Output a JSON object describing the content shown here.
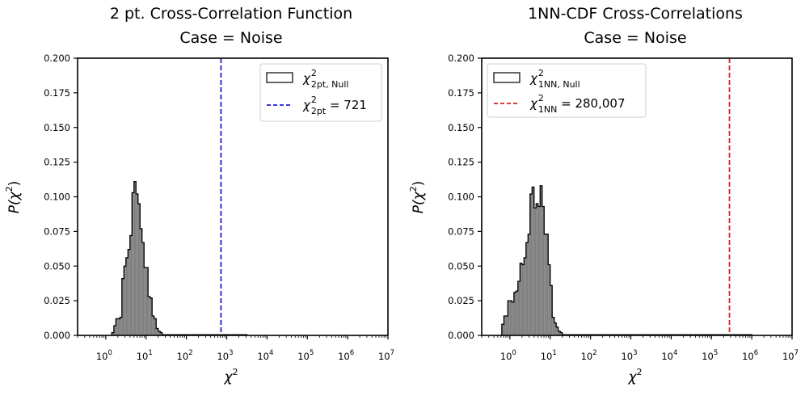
{
  "chart_data": [
    {
      "type": "histogram",
      "title_line1": "2 pt. Cross-Correlation Function",
      "title_line2": "Case = Noise",
      "xlabel": "χ",
      "xlabel_sup": "2",
      "ylabel": "P(χ",
      "ylabel_sup": "2",
      "ylabel_tail": ")",
      "xscale": "log",
      "xlim": [
        0.2,
        10000000
      ],
      "ylim": [
        0,
        0.2
      ],
      "yticks": [
        "0.000",
        "0.025",
        "0.050",
        "0.075",
        "0.100",
        "0.125",
        "0.150",
        "0.175",
        "0.200"
      ],
      "xticks": [
        {
          "base": "10",
          "exp": "0",
          "value": 1
        },
        {
          "base": "10",
          "exp": "1",
          "value": 10
        },
        {
          "base": "10",
          "exp": "2",
          "value": 100
        },
        {
          "base": "10",
          "exp": "3",
          "value": 1000
        },
        {
          "base": "10",
          "exp": "4",
          "value": 10000
        },
        {
          "base": "10",
          "exp": "5",
          "value": 100000
        },
        {
          "base": "10",
          "exp": "6",
          "value": 1000000
        },
        {
          "base": "10",
          "exp": "7",
          "value": 10000000
        }
      ],
      "bin_edges": [
        1.41,
        1.59,
        1.78,
        2.0,
        2.24,
        2.51,
        2.82,
        3.16,
        3.55,
        3.98,
        4.47,
        5.01,
        5.62,
        6.31,
        7.08,
        7.94,
        8.91,
        10.0,
        11.2,
        12.6,
        14.1,
        15.8,
        17.8,
        20.0,
        22.4,
        25.1
      ],
      "counts": [
        0.002,
        0.007,
        0.012,
        0.012,
        0.013,
        0.041,
        0.05,
        0.056,
        0.062,
        0.072,
        0.103,
        0.111,
        0.102,
        0.095,
        0.077,
        0.067,
        0.049,
        0.049,
        0.028,
        0.027,
        0.014,
        0.012,
        0.005,
        0.003,
        0.002
      ],
      "tail_bins": {
        "from": 25.1,
        "to": 3160,
        "value": 0.0005
      },
      "vline": {
        "x": 721,
        "color": "#1f1fd1",
        "style": "dashed"
      },
      "hist_fill": "#808080",
      "legend": {
        "position": "upper right",
        "entries": [
          {
            "kind": "patch",
            "sym": "χ",
            "sup": "2",
            "sub": "2pt, Null",
            "suffix": ""
          },
          {
            "kind": "line",
            "sym": "χ",
            "sup": "2",
            "sub": "2pt",
            "suffix": " = 721"
          }
        ]
      }
    },
    {
      "type": "histogram",
      "title_line1": "1NN-CDF Cross-Correlations",
      "title_line2": "Case = Noise",
      "xlabel": "χ",
      "xlabel_sup": "2",
      "ylabel": "P(χ",
      "ylabel_sup": "2",
      "ylabel_tail": ")",
      "xscale": "log",
      "xlim": [
        0.2,
        10000000
      ],
      "ylim": [
        0,
        0.2
      ],
      "yticks": [
        "0.000",
        "0.025",
        "0.050",
        "0.075",
        "0.100",
        "0.125",
        "0.150",
        "0.175",
        "0.200"
      ],
      "xticks": [
        {
          "base": "10",
          "exp": "0",
          "value": 1
        },
        {
          "base": "10",
          "exp": "1",
          "value": 10
        },
        {
          "base": "10",
          "exp": "2",
          "value": 100
        },
        {
          "base": "10",
          "exp": "3",
          "value": 1000
        },
        {
          "base": "10",
          "exp": "4",
          "value": 10000
        },
        {
          "base": "10",
          "exp": "5",
          "value": 100000
        },
        {
          "base": "10",
          "exp": "6",
          "value": 1000000
        },
        {
          "base": "10",
          "exp": "7",
          "value": 10000000
        }
      ],
      "bin_edges": [
        0.63,
        0.71,
        0.79,
        0.89,
        1.0,
        1.12,
        1.26,
        1.41,
        1.58,
        1.78,
        2.0,
        2.24,
        2.51,
        2.82,
        3.16,
        3.55,
        3.98,
        4.47,
        5.01,
        5.62,
        6.31,
        7.08,
        7.94,
        8.91,
        10.0,
        11.2,
        12.6,
        14.1,
        15.8,
        17.8,
        20.0
      ],
      "counts": [
        0.008,
        0.014,
        0.014,
        0.025,
        0.025,
        0.024,
        0.031,
        0.032,
        0.039,
        0.052,
        0.051,
        0.056,
        0.067,
        0.073,
        0.102,
        0.107,
        0.092,
        0.095,
        0.093,
        0.108,
        0.093,
        0.073,
        0.073,
        0.051,
        0.036,
        0.013,
        0.009,
        0.006,
        0.003,
        0.002
      ],
      "tail_bins": {
        "from": 20.0,
        "to": 1000000,
        "value": 0.0005
      },
      "vline": {
        "x": 280007,
        "color": "#d62020",
        "style": "dashed"
      },
      "hist_fill": "#808080",
      "legend": {
        "position": "upper left",
        "entries": [
          {
            "kind": "patch",
            "sym": "χ",
            "sup": "2",
            "sub": "1NN, Null",
            "suffix": ""
          },
          {
            "kind": "line",
            "sym": "χ",
            "sup": "2",
            "sub": "1NN",
            "suffix": "  = 280,007"
          }
        ]
      }
    }
  ]
}
